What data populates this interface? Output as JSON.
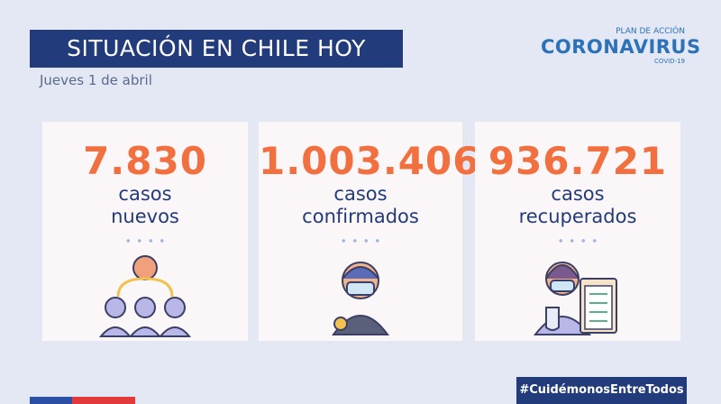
{
  "header": {
    "title": "SITUACIÓN EN CHILE HOY",
    "date": "Jueves 1 de abril"
  },
  "logo": {
    "line1": "PLAN DE ACCIÓN",
    "line2": "CORONAVIRUS",
    "line3": "COVID-19"
  },
  "cards": [
    {
      "number": "7.830",
      "label1": "casos",
      "label2": "nuevos"
    },
    {
      "number": "1.003.406",
      "label1": "casos",
      "label2": "confirmados"
    },
    {
      "number": "936.721",
      "label1": "casos",
      "label2": "recuperados"
    }
  ],
  "footer": {
    "hashtag": "#CuidémonosEntreTodos"
  }
}
